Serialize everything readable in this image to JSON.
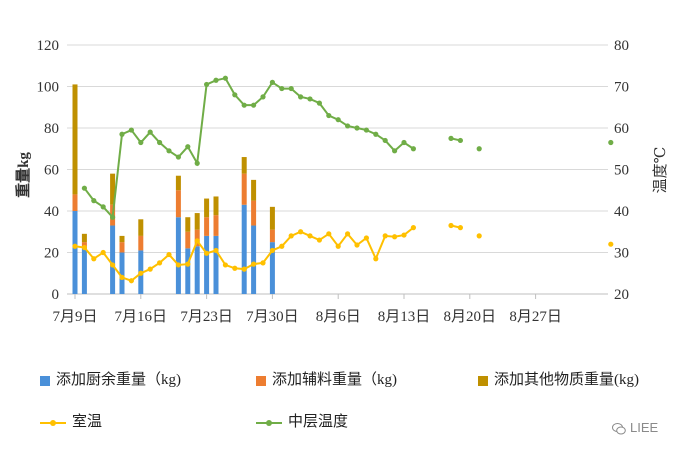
{
  "chart_data": {
    "type": "bar+line",
    "y_left": {
      "label": "重量kg",
      "ylim": [
        0,
        120
      ],
      "ticks": [
        "0",
        "20",
        "40",
        "60",
        "80",
        "100",
        "120"
      ]
    },
    "y_right": {
      "label": "温度℃",
      "ylim": [
        20,
        80
      ],
      "ticks": [
        "20",
        "30",
        "40",
        "50",
        "60",
        "70",
        "80"
      ]
    },
    "x_ticks": [
      {
        "day": 0,
        "label": "7月9日"
      },
      {
        "day": 7,
        "label": "7月16日"
      },
      {
        "day": 14,
        "label": "7月23日"
      },
      {
        "day": 21,
        "label": "7月30日"
      },
      {
        "day": 28,
        "label": "8月6日"
      },
      {
        "day": 35,
        "label": "8月13日"
      },
      {
        "day": 42,
        "label": "8月20日"
      },
      {
        "day": 49,
        "label": "8月27日"
      }
    ],
    "x_range": [
      0,
      57
    ],
    "bar_series": [
      {
        "name": "添加厨余重量（kg)",
        "color": "#4a90d9"
      },
      {
        "name": "添加辅料重量（kg)",
        "color": "#ed7d31"
      },
      {
        "name": "添加其他物质重量(kg)",
        "color": "#bf9000"
      }
    ],
    "bars": [
      {
        "day": 0,
        "values": [
          40,
          8,
          53
        ]
      },
      {
        "day": 1,
        "values": [
          22,
          3,
          4
        ]
      },
      {
        "day": 4,
        "values": [
          33,
          10,
          15
        ]
      },
      {
        "day": 5,
        "values": [
          20,
          5,
          3
        ]
      },
      {
        "day": 7,
        "values": [
          21,
          7,
          8
        ]
      },
      {
        "day": 11,
        "values": [
          37,
          13,
          7
        ]
      },
      {
        "day": 12,
        "values": [
          22,
          8,
          7
        ]
      },
      {
        "day": 13,
        "values": [
          23,
          8,
          8
        ]
      },
      {
        "day": 14,
        "values": [
          28,
          9,
          9
        ]
      },
      {
        "day": 15,
        "values": [
          28,
          10,
          9
        ]
      },
      {
        "day": 18,
        "values": [
          43,
          15,
          8
        ]
      },
      {
        "day": 19,
        "values": [
          33,
          12,
          10
        ]
      },
      {
        "day": 21,
        "values": [
          25,
          6,
          11
        ]
      }
    ],
    "line_series": [
      {
        "name": "室温",
        "color": "#ffc000",
        "points": [
          [
            0,
            31.5
          ],
          [
            1,
            31.2
          ],
          [
            2,
            28.5
          ],
          [
            3,
            30
          ],
          [
            4,
            27
          ],
          [
            5,
            24
          ],
          [
            6,
            23.2
          ],
          [
            7,
            25
          ],
          [
            8,
            26
          ],
          [
            9,
            27.5
          ],
          [
            10,
            29.5
          ],
          [
            11,
            27
          ],
          [
            12,
            27.2
          ],
          [
            13,
            32.8
          ],
          [
            14,
            29.8
          ],
          [
            15,
            30.5
          ],
          [
            16,
            27
          ],
          [
            17,
            26.2
          ],
          [
            18,
            26
          ],
          [
            19,
            27.2
          ],
          [
            20,
            27.5
          ],
          [
            21,
            30.5
          ],
          [
            22,
            31.5
          ],
          [
            23,
            34
          ],
          [
            24,
            35
          ],
          [
            25,
            34
          ],
          [
            26,
            33
          ],
          [
            27,
            34.5
          ],
          [
            28,
            31.5
          ],
          [
            29,
            34.5
          ],
          [
            30,
            31.8
          ],
          [
            31,
            33.5
          ],
          [
            32,
            28.5
          ],
          [
            33,
            34
          ],
          [
            34,
            33.8
          ],
          [
            35,
            34.2
          ],
          [
            36,
            36
          ],
          null,
          [
            40,
            36.5
          ],
          [
            41,
            36
          ],
          null,
          [
            43,
            34
          ],
          null,
          [
            57,
            32
          ]
        ]
      },
      {
        "name": "中层温度",
        "color": "#70ad47",
        "points": [
          [
            1,
            45.5
          ],
          [
            2,
            42.5
          ],
          [
            3,
            41
          ],
          [
            4,
            38.5
          ],
          [
            5,
            58.5
          ],
          [
            6,
            59.5
          ],
          [
            7,
            56.5
          ],
          [
            8,
            59
          ],
          [
            9,
            56.5
          ],
          [
            10,
            54.5
          ],
          [
            11,
            53
          ],
          [
            12,
            55.5
          ],
          [
            13,
            51.5
          ],
          [
            14,
            70.5
          ],
          [
            15,
            71.5
          ],
          [
            16,
            72
          ],
          [
            17,
            68
          ],
          [
            18,
            65.5
          ],
          [
            19,
            65.5
          ],
          [
            20,
            67.5
          ],
          [
            21,
            71
          ],
          [
            22,
            69.5
          ],
          [
            23,
            69.5
          ],
          [
            24,
            67.5
          ],
          [
            25,
            67
          ],
          [
            26,
            66
          ],
          [
            27,
            63
          ],
          [
            28,
            62
          ],
          [
            29,
            60.5
          ],
          [
            30,
            60
          ],
          [
            31,
            59.5
          ],
          [
            32,
            58.5
          ],
          [
            33,
            57
          ],
          [
            34,
            54.5
          ],
          [
            35,
            56.5
          ],
          [
            36,
            55
          ],
          null,
          [
            40,
            57.5
          ],
          [
            41,
            57
          ],
          null,
          [
            43,
            55
          ],
          null,
          [
            57,
            56.5
          ]
        ]
      }
    ],
    "legend_position": "bottom"
  },
  "watermark": {
    "text": "LIEE"
  }
}
